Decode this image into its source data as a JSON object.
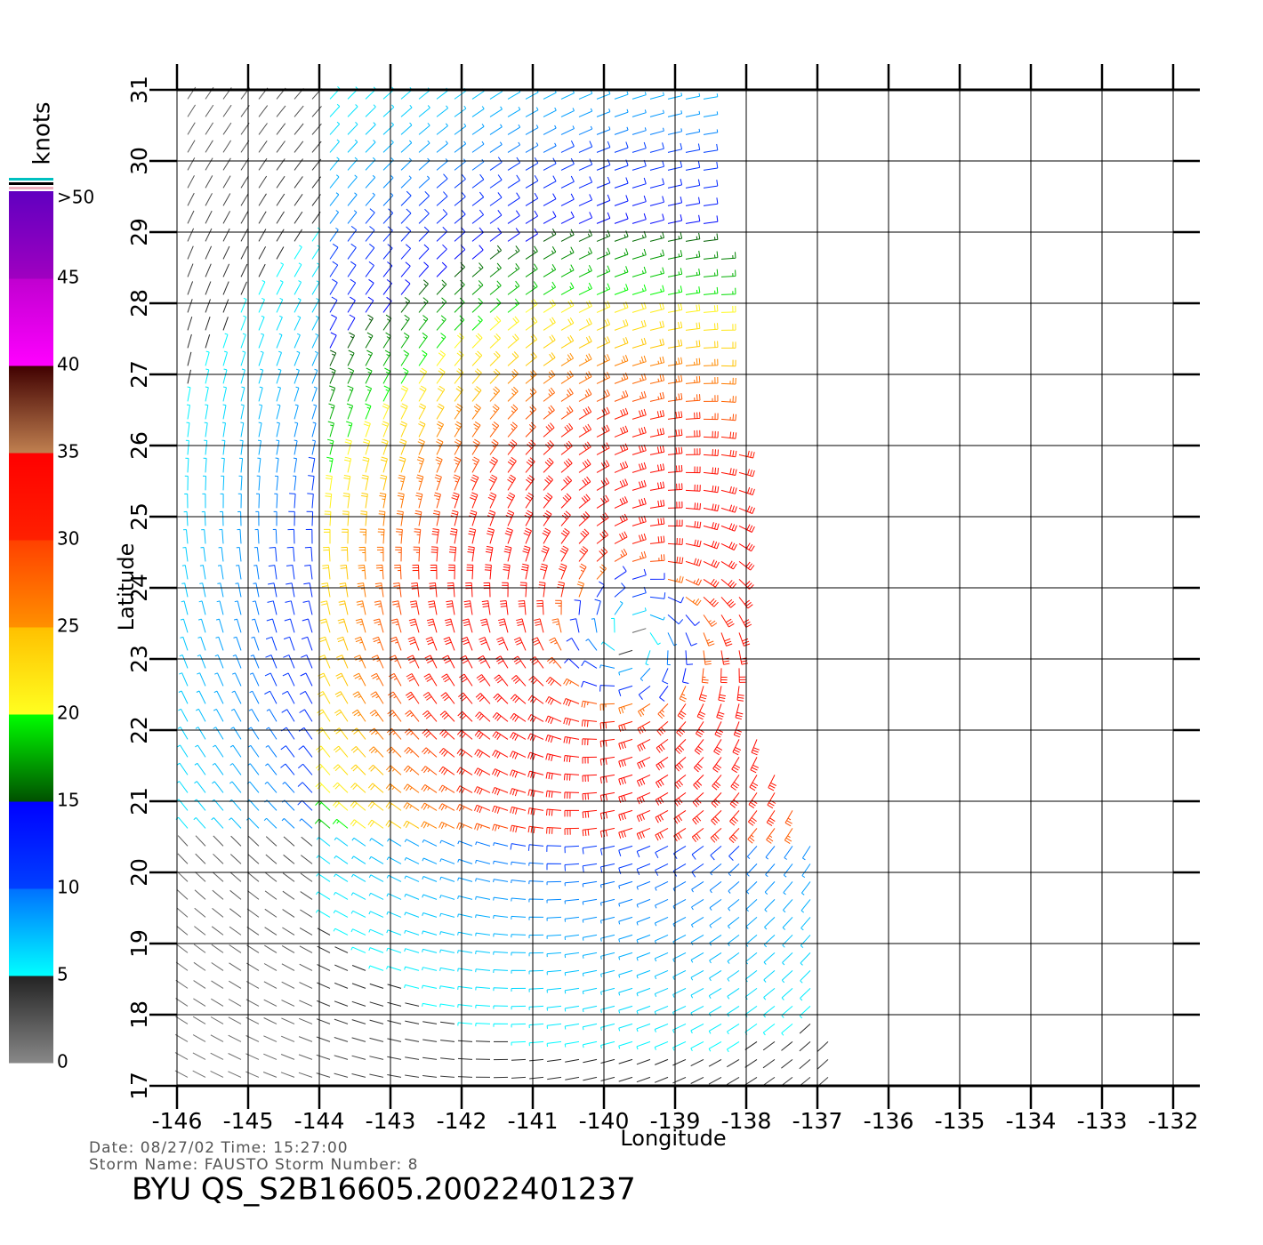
{
  "chart_data": {
    "type": "wind-barb-map",
    "title": "BYU  QS_S2B16605.20022401237",
    "info": [
      "Date:  08/27/02    Time:  15:27:00",
      "Storm  Name:  FAUSTO    Storm  Number:  8"
    ],
    "x_label": "Longitude",
    "y_label": "Latitude",
    "xlim": [
      -146,
      -132
    ],
    "ylim": [
      17,
      31
    ],
    "xticks": [
      -146,
      -145,
      -144,
      -143,
      -142,
      -141,
      -140,
      -139,
      -138,
      -137,
      -136,
      -135,
      -134,
      -133,
      -132
    ],
    "yticks": [
      17,
      18,
      19,
      20,
      21,
      22,
      23,
      24,
      25,
      26,
      27,
      28,
      29,
      30,
      31
    ],
    "grid": true,
    "colorbar": {
      "label": "knots",
      "lim": [
        0,
        50
      ],
      "ticks": [
        0,
        5,
        10,
        15,
        20,
        25,
        30,
        35,
        40,
        {
          "value": 50,
          "label": ">50"
        },
        45
      ],
      "colors": [
        [
          "#888888",
          "#222222"
        ],
        [
          "#00ffff",
          "#0070ff"
        ],
        [
          "#0040ff",
          "#0000ff"
        ],
        [
          "#005000",
          "#00ff00"
        ],
        [
          "#ffff20",
          "#ffc000"
        ],
        [
          "#ff9000",
          "#ff4000"
        ],
        [
          "#ff2000",
          "#ff0000"
        ],
        [
          "#c08050",
          "#400000"
        ],
        [
          "#ff00ff",
          "#c000d0"
        ],
        [
          "#a000c0",
          "#6000c0"
        ]
      ]
    }
  }
}
